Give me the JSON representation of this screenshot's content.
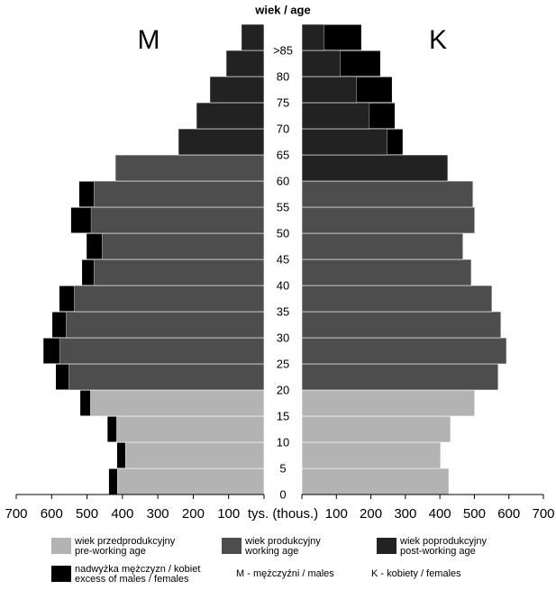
{
  "chart_data": {
    "type": "population-pyramid",
    "title": "wiek / age",
    "left_label": "M",
    "right_label": "K",
    "xlabel": "tys. (thous.)",
    "categories": [
      "0",
      "5",
      "10",
      "15",
      "20",
      "25",
      "30",
      "35",
      "40",
      "45",
      "50",
      "55",
      "60",
      "65",
      "70",
      "75",
      "80",
      ">85"
    ],
    "xlim": [
      0,
      700
    ],
    "xticks": [
      100,
      200,
      300,
      400,
      500,
      600,
      700
    ],
    "series": [
      {
        "name": "M",
        "values": [
          415,
          392,
          417,
          491,
          552,
          578,
          560,
          537,
          481,
          458,
          489,
          481,
          420,
          242,
          191,
          153,
          107,
          64
        ],
        "excess": [
          23,
          23,
          25,
          28,
          36,
          45,
          38,
          41,
          33,
          43,
          56,
          41,
          0,
          0,
          0,
          0,
          0,
          0
        ],
        "groups": [
          0,
          0,
          0,
          0,
          1,
          1,
          1,
          1,
          1,
          1,
          1,
          1,
          1,
          2,
          2,
          2,
          2,
          2
        ]
      },
      {
        "name": "K",
        "values": [
          426,
          402,
          431,
          501,
          569,
          593,
          577,
          551,
          491,
          467,
          501,
          496,
          423,
          248,
          196,
          159,
          112,
          65
        ],
        "excess": [
          0,
          0,
          0,
          0,
          0,
          0,
          0,
          0,
          0,
          0,
          0,
          0,
          0,
          44,
          73,
          102,
          115,
          107
        ],
        "groups": [
          0,
          0,
          0,
          0,
          1,
          1,
          1,
          1,
          1,
          1,
          1,
          1,
          2,
          2,
          2,
          2,
          2,
          2
        ]
      }
    ],
    "legend": [
      {
        "lines": [
          "wiek przedprodukcyjny",
          "pre-working age"
        ],
        "color": "#b3b3b3"
      },
      {
        "lines": [
          "wiek produkcyjny",
          "working age"
        ],
        "color": "#4d4d4d"
      },
      {
        "lines": [
          "wiek poprodukcyjny",
          "post-working age"
        ],
        "color": "#222222"
      },
      {
        "lines": [
          "nadwyżka mężczyzn / kobiet",
          "excess of males / females"
        ],
        "color": "#000000"
      }
    ],
    "notes": [
      "M - mężczyźni / males",
      "K - kobiety / females"
    ]
  }
}
